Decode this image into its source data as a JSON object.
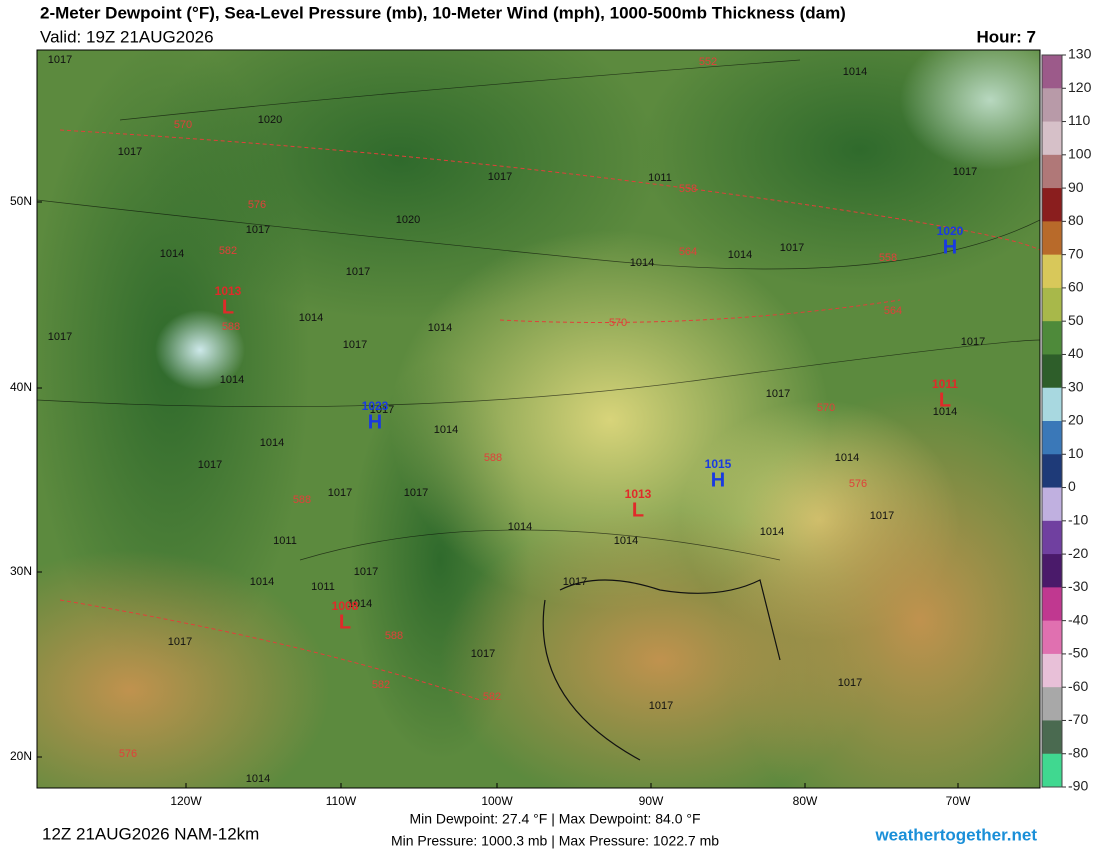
{
  "header": {
    "title": "2-Meter Dewpoint (°F), Sea-Level Pressure (mb), 10-Meter Wind (mph), 1000-500mb Thickness (dam)",
    "valid": "Valid: 19Z 21AUG2026",
    "hour": "Hour: 7"
  },
  "axes": {
    "lat": [
      "50N",
      "40N",
      "30N",
      "20N"
    ],
    "lon": [
      "120W",
      "110W",
      "100W",
      "90W",
      "80W",
      "70W"
    ]
  },
  "colorbar": {
    "ticks": [
      130,
      120,
      110,
      100,
      90,
      80,
      70,
      60,
      50,
      40,
      30,
      20,
      10,
      0,
      -10,
      -20,
      -30,
      -40,
      -50,
      -60,
      -70,
      -80,
      -90
    ],
    "colors": [
      "#9c5a8a",
      "#b89aa8",
      "#d6c0c8",
      "#b07878",
      "#8a1e1e",
      "#b86a2a",
      "#d8c85a",
      "#a8b84a",
      "#4e8a3a",
      "#2e5e2a",
      "#a8d8e0",
      "#3a78b8",
      "#1e3a78",
      "#c0b0e0",
      "#7040a0",
      "#4a1a6a",
      "#c03890",
      "#e070b0",
      "#e8c0d8",
      "#a8a8a8",
      "#4a6a50",
      "#40d890"
    ]
  },
  "map": {
    "isobar_labels": [
      1017,
      1020,
      1017,
      1014,
      1017,
      1017,
      1014,
      1017,
      1014,
      1014,
      1017,
      1017,
      1014,
      1014,
      1017,
      1017,
      1017,
      1014,
      1011,
      1014,
      1011,
      1017,
      1014,
      1017,
      1017,
      1014,
      1017,
      1014,
      1017,
      1014,
      1017,
      1014,
      1017,
      1017,
      1017,
      1014,
      1014,
      1017,
      1014,
      1017,
      1014,
      1011,
      1020,
      1017
    ],
    "thickness_labels": [
      552,
      570,
      576,
      558,
      582,
      564,
      558,
      564,
      570,
      588,
      570,
      588,
      576,
      588,
      588,
      582,
      582,
      576
    ],
    "centers": [
      {
        "letter": "H",
        "pressure": 1023
      },
      {
        "letter": "H",
        "pressure": 1015
      },
      {
        "letter": "H",
        "pressure": 1020
      },
      {
        "letter": "L",
        "pressure": 1013
      },
      {
        "letter": "L",
        "pressure": 1011
      },
      {
        "letter": "L",
        "pressure": 1008
      },
      {
        "letter": "L",
        "pressure": 1013
      }
    ]
  },
  "footer": {
    "run": "12Z 21AUG2026 NAM-12km",
    "dewpoint": "Min Dewpoint: 27.4 °F | Max Dewpoint: 84.0 °F",
    "pressure": "Min Pressure: 1000.3 mb | Max Pressure: 1022.7 mb",
    "site": "weathertogether.net"
  }
}
